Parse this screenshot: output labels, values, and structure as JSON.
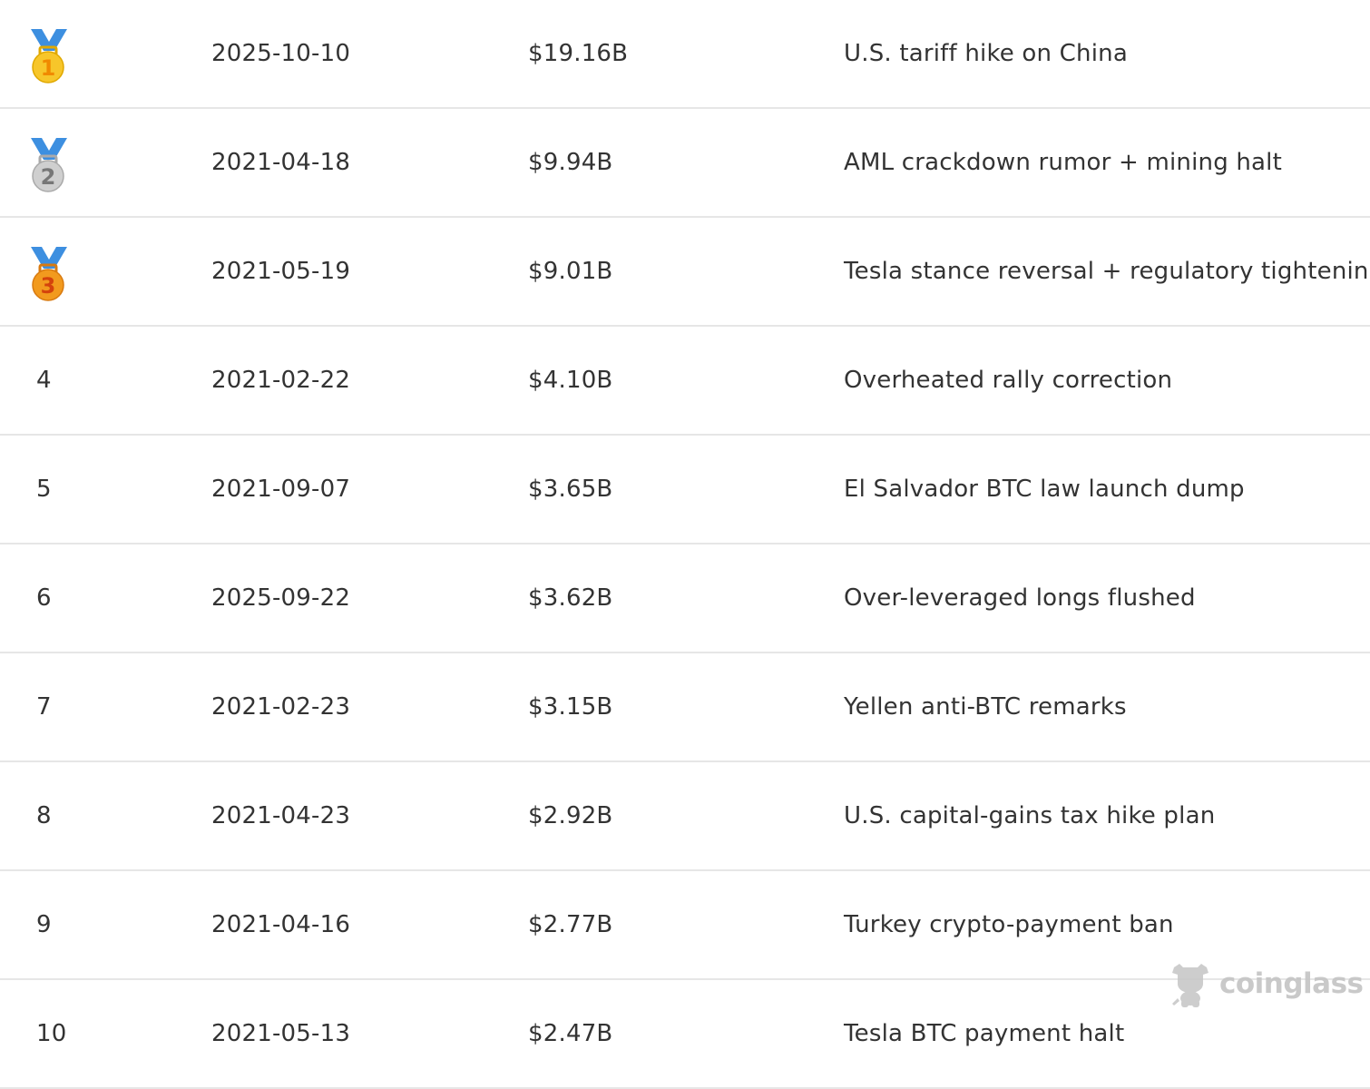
{
  "table": {
    "rows": [
      {
        "rank": "1",
        "medal": "gold-medal",
        "date": "2025-10-10",
        "amount": "$19.16B",
        "reason": "U.S. tariff hike on China"
      },
      {
        "rank": "2",
        "medal": "silver-medal",
        "date": "2021-04-18",
        "amount": "$9.94B",
        "reason": "AML crackdown rumor + mining halt"
      },
      {
        "rank": "3",
        "medal": "bronze-medal",
        "date": "2021-05-19",
        "amount": "$9.01B",
        "reason": "Tesla stance reversal + regulatory tightening"
      },
      {
        "rank": "4",
        "date": "2021-02-22",
        "amount": "$4.10B",
        "reason": "Overheated rally correction"
      },
      {
        "rank": "5",
        "date": "2021-09-07",
        "amount": "$3.65B",
        "reason": "El Salvador BTC law launch dump"
      },
      {
        "rank": "6",
        "date": "2025-09-22",
        "amount": "$3.62B",
        "reason": "Over-leveraged longs flushed"
      },
      {
        "rank": "7",
        "date": "2021-02-23",
        "amount": "$3.15B",
        "reason": "Yellen anti-BTC remarks"
      },
      {
        "rank": "8",
        "date": "2021-04-23",
        "amount": "$2.92B",
        "reason": "U.S. capital-gains tax hike plan"
      },
      {
        "rank": "9",
        "date": "2021-04-16",
        "amount": "$2.77B",
        "reason": "Turkey crypto-payment ban"
      },
      {
        "rank": "10",
        "date": "2021-05-13",
        "amount": "$2.47B",
        "reason": "Tesla BTC payment halt"
      }
    ]
  },
  "medal_colors": {
    "gold-medal": "#f7c62a",
    "silver-medal": "#cfcfcf",
    "bronze-medal": "#f29a1e",
    "ribbon": "#3d8fe0"
  },
  "watermark": {
    "text": "coinglass",
    "color": "#c4c4c4"
  }
}
